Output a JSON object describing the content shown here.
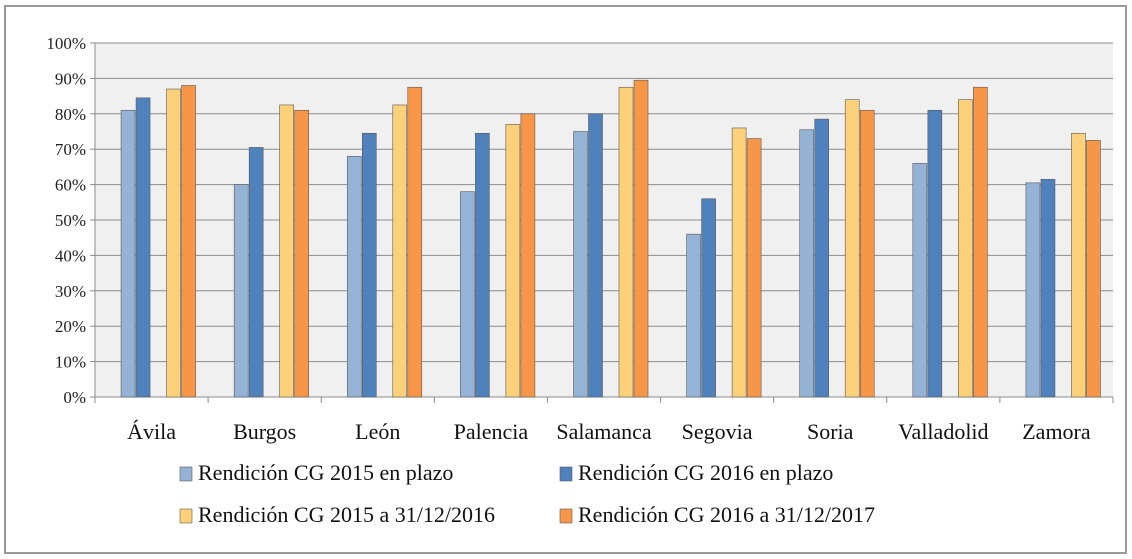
{
  "chart_data": {
    "type": "bar",
    "categories": [
      "Ávila",
      "Burgos",
      "León",
      "Palencia",
      "Salamanca",
      "Segovia",
      "Soria",
      "Valladolid",
      "Zamora"
    ],
    "series": [
      {
        "name": "Rendición CG 2015 en plazo",
        "color": "#95b3d7",
        "values": [
          81,
          60,
          68,
          58,
          75,
          46,
          75.5,
          66,
          60.5
        ]
      },
      {
        "name": "Rendición CG 2016 en plazo",
        "color": "#4f81bd",
        "values": [
          84.5,
          70.5,
          74.5,
          74.5,
          80,
          56,
          78.5,
          81,
          61.5
        ]
      },
      {
        "name": "Rendición CG 2015 a 31/12/2016",
        "color": "#fcd179",
        "values": [
          87,
          82.5,
          82.5,
          77,
          87.5,
          76,
          84,
          84,
          74.5
        ]
      },
      {
        "name": "Rendición CG 2016 a 31/12/2017",
        "color": "#f79646",
        "values": [
          88,
          81,
          87.5,
          80,
          89.5,
          73,
          81,
          87.5,
          72.5
        ]
      }
    ],
    "yticks": [
      "0%",
      "10%",
      "20%",
      "30%",
      "40%",
      "50%",
      "60%",
      "70%",
      "80%",
      "90%",
      "100%"
    ],
    "ylim": [
      0,
      100
    ],
    "grid": true,
    "legend_position": "bottom"
  }
}
